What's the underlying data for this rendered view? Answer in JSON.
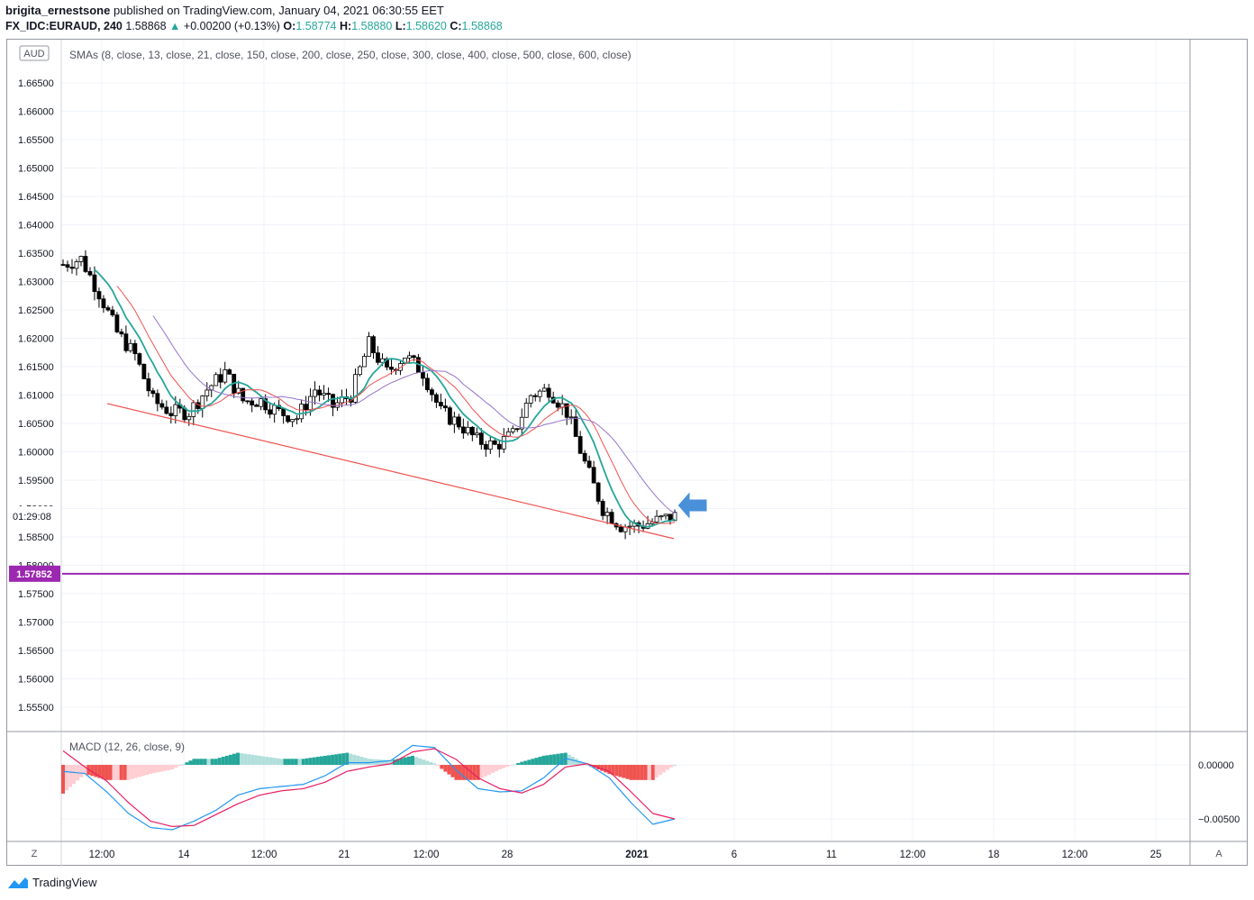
{
  "header": {
    "author": "brigita_ernestsone",
    "published_text": "published on TradingView.com, January 04, 2021 06:30:55 EET",
    "symbol": "FX_IDC:EURAUD, 240",
    "last": "1.58868",
    "change_arrow": "▲",
    "change": "+0.00200 (+0.13%)",
    "o_label": "O:",
    "o_value": "1.58774",
    "h_label": "H:",
    "h_value": "1.58880",
    "l_label": "L:",
    "l_value": "1.58620",
    "c_label": "C:",
    "c_value": "1.58868"
  },
  "main_pane": {
    "currency_badge": "AUD",
    "indicator_label": "SMAs (8, close, 13, close, 21, close, 150, close, 200, close, 250, close, 300, close, 400, close, 500, close, 600, close)",
    "countdown": "01:29:08",
    "horizontal_line_price_label": "1.57852",
    "horizontal_line_color": "#9c27b0"
  },
  "macd_pane": {
    "label": "MACD (12, 26, close, 9)",
    "y_ticks": [
      "0.00000",
      "−0.00500"
    ]
  },
  "x_axis": {
    "labels": [
      "12:00",
      "14",
      "12:00",
      "21",
      "12:00",
      "28",
      "2021",
      "6",
      "11",
      "12:00",
      "18",
      "12:00",
      "25"
    ]
  },
  "bottom_left_button": "Z",
  "bottom_right_button": "A",
  "footer_logo": "TradingView",
  "colors": {
    "up": "#ffffff",
    "down": "#000000",
    "sma8": "#26a69a",
    "sma13": "#ef5350",
    "sma21": "#9575cd",
    "trendline": "#ef5350",
    "macd_line": "#2196f3",
    "signal_line": "#e91e63",
    "arrow": "#4a90d9"
  },
  "chart_data": {
    "type": "line",
    "title": "",
    "symbol": "FX_IDC:EURAUD",
    "timeframe": "240",
    "y_ticks": [
      "1.66500",
      "1.66000",
      "1.65500",
      "1.65000",
      "1.64500",
      "1.64000",
      "1.63500",
      "1.63000",
      "1.62500",
      "1.62000",
      "1.61500",
      "1.61000",
      "1.60500",
      "1.60000",
      "1.59500",
      "1.59000",
      "1.58500",
      "1.58000",
      "1.57500",
      "1.57000",
      "1.56500",
      "1.56000",
      "1.55500"
    ],
    "ylim": [
      1.551,
      1.668
    ],
    "price_approx_series": {
      "name": "",
      "x_index": [
        0,
        4,
        8,
        12,
        16,
        20,
        24,
        28,
        32,
        36,
        40,
        44,
        48,
        52,
        56,
        60,
        64,
        68,
        72,
        76,
        80,
        84,
        88,
        92,
        96,
        100,
        104,
        108,
        112,
        116,
        120,
        124,
        128,
        136
      ],
      "values": [
        1.633,
        1.634,
        1.628,
        1.621,
        1.617,
        1.609,
        1.607,
        1.607,
        1.611,
        1.614,
        1.609,
        1.609,
        1.607,
        1.606,
        1.611,
        1.608,
        1.61,
        1.619,
        1.614,
        1.617,
        1.614,
        1.607,
        1.605,
        1.602,
        1.601,
        1.603,
        1.61,
        1.611,
        1.607,
        1.598,
        1.59,
        1.587,
        1.587,
        1.5887
      ]
    },
    "horizontal_level": 1.57852,
    "trendline": {
      "from": 1.6085,
      "to": 1.5847
    },
    "macd": {
      "ylim": [
        -0.0065,
        0.0018
      ],
      "macd_values": [
        -0.0006,
        -0.0008,
        -0.0025,
        -0.0045,
        -0.0058,
        -0.006,
        -0.0052,
        -0.0042,
        -0.0028,
        -0.0022,
        -0.002,
        -0.0018,
        -0.001,
        0.0002,
        0.0002,
        0.0004,
        0.0018,
        0.0016,
        -0.0005,
        -0.0022,
        -0.0025,
        -0.0024,
        -0.0012,
        0.0006,
        0.0001,
        -0.0012,
        -0.0035,
        -0.0055,
        -0.005
      ],
      "signal_values": [
        0.0013,
        -0.0002,
        -0.0015,
        -0.0035,
        -0.0052,
        -0.0057,
        -0.0056,
        -0.0046,
        -0.0036,
        -0.0028,
        -0.0024,
        -0.0022,
        -0.0016,
        -0.0006,
        -0.0002,
        0.0001,
        0.0012,
        0.0015,
        0.0005,
        -0.0012,
        -0.0022,
        -0.0026,
        -0.0018,
        -0.0002,
        0.0001,
        -0.0006,
        -0.0025,
        -0.0045,
        -0.005
      ]
    }
  }
}
